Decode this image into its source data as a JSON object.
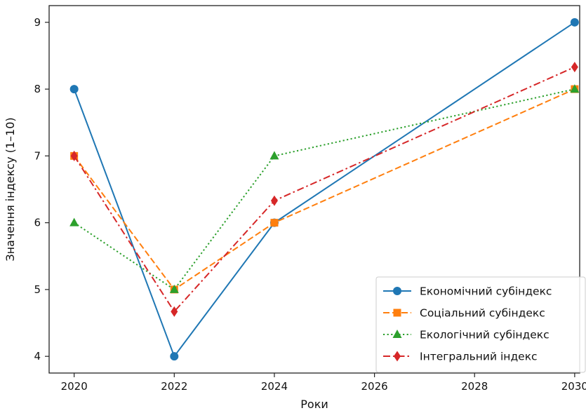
{
  "chart_data": {
    "type": "line",
    "title": "",
    "xlabel": "Роки",
    "ylabel": "Значення індексу (1–10)",
    "xlim": [
      2019.5,
      2030.1
    ],
    "ylim": [
      3.75,
      9.25
    ],
    "xticks": [
      2020,
      2022,
      2024,
      2026,
      2028,
      2030
    ],
    "yticks": [
      4,
      5,
      6,
      7,
      8,
      9
    ],
    "grid": false,
    "legend_position": "lower-right",
    "x": [
      2020,
      2022,
      2024,
      2030
    ],
    "series": [
      {
        "name": "Економічний субіндекс",
        "values": [
          8,
          4,
          6,
          9
        ],
        "color": "#1f77b4",
        "dash": "solid",
        "marker": "circle"
      },
      {
        "name": "Соціальний субіндекс",
        "values": [
          7,
          5,
          6,
          8
        ],
        "color": "#ff7f0e",
        "dash": "dashed",
        "marker": "square"
      },
      {
        "name": "Екологічний субіндекс",
        "values": [
          6,
          5,
          7,
          8
        ],
        "color": "#2ca02c",
        "dash": "dotted",
        "marker": "triangle"
      },
      {
        "name": "Інтегральний індекс",
        "values": [
          7,
          4.67,
          6.33,
          8.33
        ],
        "color": "#d62728",
        "dash": "dashdot",
        "marker": "diamond"
      }
    ]
  }
}
